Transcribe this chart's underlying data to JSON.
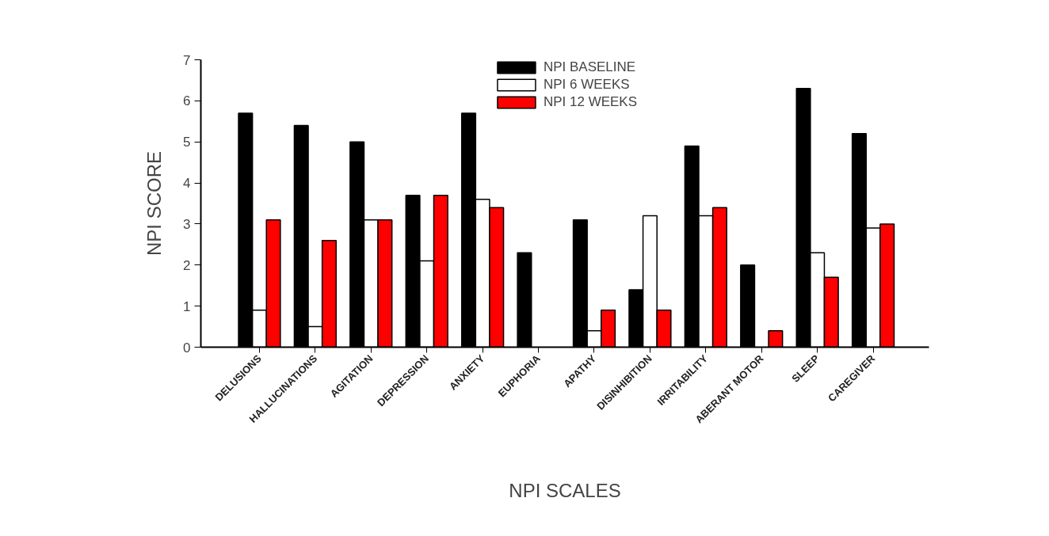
{
  "chart_data": {
    "type": "bar",
    "xlabel": "NPI SCALES",
    "ylabel": "NPI SCORE",
    "categories": [
      "DELUSIONS",
      "HALLUCINATIONS",
      "AGITATION",
      "DEPRESSION",
      "ANXIETY",
      "EUPHORIA",
      "APATHY",
      "DISINHIBITION",
      "IRRITABILITY",
      "ABERANT MOTOR",
      "SLEEP",
      "CAREGIVER"
    ],
    "series": [
      {
        "name": "NPI BASELINE",
        "color": "#000000",
        "values": [
          5.7,
          5.4,
          5.0,
          3.7,
          5.7,
          2.3,
          3.1,
          1.4,
          4.9,
          2.0,
          6.3,
          5.2
        ]
      },
      {
        "name": "NPI 6 WEEKS",
        "color": "#ffffff",
        "values": [
          0.9,
          0.5,
          3.1,
          2.1,
          3.6,
          null,
          0.4,
          3.2,
          3.2,
          null,
          2.3,
          2.9
        ]
      },
      {
        "name": "NPI 12 WEEKS",
        "color": "#ff0000",
        "values": [
          3.1,
          2.6,
          3.1,
          3.7,
          3.4,
          null,
          0.9,
          0.9,
          3.4,
          0.4,
          1.7,
          3.0
        ]
      }
    ],
    "ylim": [
      0,
      7
    ],
    "yticks": [
      0,
      1,
      2,
      3,
      4,
      5,
      6,
      7
    ],
    "grid": false,
    "legend": "top"
  }
}
